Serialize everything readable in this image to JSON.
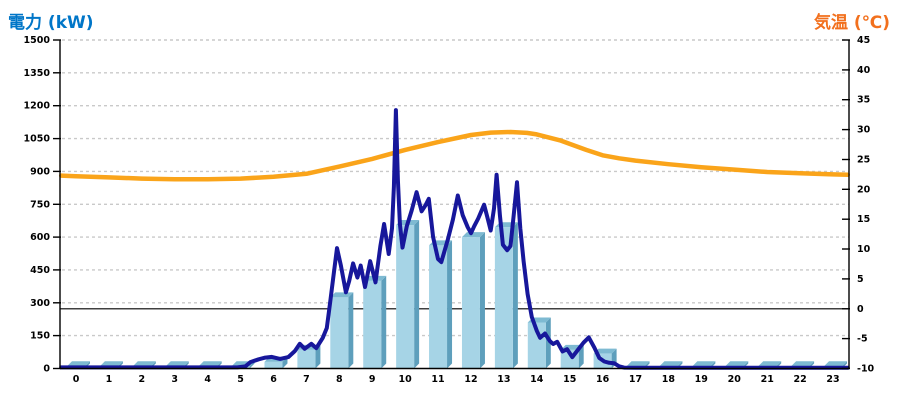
{
  "header": {
    "left_axis_title": "電力 (kW)",
    "right_axis_title": "気温 (℃)",
    "left_title_color": "#0076C8",
    "right_title_color": "#F2701D"
  },
  "chart_data": {
    "type": "combo-bar-line",
    "x_labels": [
      "0",
      "1",
      "2",
      "3",
      "4",
      "5",
      "6",
      "7",
      "8",
      "9",
      "10",
      "11",
      "12",
      "13",
      "14",
      "15",
      "16",
      "17",
      "18",
      "19",
      "20",
      "21",
      "22",
      "23"
    ],
    "left_axis": {
      "label": "電力 (kW)",
      "min": 0,
      "max": 1500,
      "step": 150,
      "tick_labels": [
        "1500",
        "1350",
        "1200",
        "1050",
        "900",
        "750",
        "600",
        "450",
        "300",
        "150",
        "0"
      ]
    },
    "right_axis": {
      "label": "気温 (℃)",
      "min": -10,
      "max": 45,
      "step": 5,
      "tick_labels": [
        "45",
        "40",
        "35",
        "30",
        "25",
        "20",
        "15",
        "10",
        "5",
        "0",
        "-5",
        "-10"
      ]
    },
    "grid": {
      "color": "#C9C9C9",
      "dash": "3,3"
    },
    "reference_line": {
      "axis": "right",
      "value": 0,
      "color": "#000000"
    },
    "series": [
      {
        "id": "power-bars",
        "type": "bar",
        "axis": "left",
        "color_front": "#A6D4E6",
        "color_side": "#5E9FBC",
        "color_top": "#7EBAD2",
        "values": [
          10,
          10,
          10,
          10,
          10,
          10,
          30,
          85,
          325,
          400,
          655,
          562,
          600,
          645,
          210,
          85,
          68,
          10,
          10,
          10,
          10,
          10,
          10,
          10
        ]
      },
      {
        "id": "temperature-line",
        "type": "line",
        "axis": "right",
        "color": "#FAA41A",
        "width": 4.5,
        "points": [
          [
            -0.45,
            22.3
          ],
          [
            0,
            22.2
          ],
          [
            1,
            22.0
          ],
          [
            2,
            21.8
          ],
          [
            3,
            21.7
          ],
          [
            4,
            21.7
          ],
          [
            5,
            21.8
          ],
          [
            6,
            22.1
          ],
          [
            7,
            22.6
          ],
          [
            8,
            23.8
          ],
          [
            9,
            25.1
          ],
          [
            10,
            26.6
          ],
          [
            11,
            27.9
          ],
          [
            12,
            29.1
          ],
          [
            12.6,
            29.5
          ],
          [
            13.2,
            29.6
          ],
          [
            13.7,
            29.45
          ],
          [
            14,
            29.2
          ],
          [
            14.7,
            28.2
          ],
          [
            15,
            27.6
          ],
          [
            15.5,
            26.6
          ],
          [
            16,
            25.7
          ],
          [
            16.5,
            25.2
          ],
          [
            17,
            24.8
          ],
          [
            18,
            24.2
          ],
          [
            19,
            23.7
          ],
          [
            20,
            23.3
          ],
          [
            21,
            22.9
          ],
          [
            22,
            22.7
          ],
          [
            23,
            22.5
          ],
          [
            23.45,
            22.45
          ]
        ]
      },
      {
        "id": "power-line",
        "type": "line",
        "axis": "left",
        "color": "#17179B",
        "width": 4,
        "points": [
          [
            -0.45,
            5
          ],
          [
            0,
            5
          ],
          [
            0.5,
            5
          ],
          [
            1,
            5
          ],
          [
            1.5,
            5
          ],
          [
            2,
            5
          ],
          [
            2.5,
            5
          ],
          [
            3,
            5
          ],
          [
            3.5,
            5
          ],
          [
            4,
            5
          ],
          [
            4.5,
            5
          ],
          [
            4.9,
            5
          ],
          [
            5.15,
            10
          ],
          [
            5.3,
            29
          ],
          [
            5.55,
            42
          ],
          [
            5.75,
            50
          ],
          [
            5.95,
            53
          ],
          [
            6.2,
            44
          ],
          [
            6.45,
            52
          ],
          [
            6.65,
            80
          ],
          [
            6.8,
            113
          ],
          [
            6.95,
            90
          ],
          [
            7.15,
            113
          ],
          [
            7.3,
            93
          ],
          [
            7.5,
            140
          ],
          [
            7.62,
            185
          ],
          [
            7.72,
            300
          ],
          [
            7.82,
            420
          ],
          [
            7.93,
            550
          ],
          [
            8.05,
            470
          ],
          [
            8.2,
            348
          ],
          [
            8.3,
            400
          ],
          [
            8.42,
            480
          ],
          [
            8.55,
            415
          ],
          [
            8.65,
            470
          ],
          [
            8.78,
            372
          ],
          [
            8.94,
            490
          ],
          [
            9.1,
            393
          ],
          [
            9.25,
            560
          ],
          [
            9.36,
            660
          ],
          [
            9.5,
            523
          ],
          [
            9.6,
            640
          ],
          [
            9.66,
            830
          ],
          [
            9.72,
            1180
          ],
          [
            9.78,
            860
          ],
          [
            9.84,
            660
          ],
          [
            9.92,
            552
          ],
          [
            10.05,
            650
          ],
          [
            10.2,
            722
          ],
          [
            10.35,
            805
          ],
          [
            10.5,
            718
          ],
          [
            10.62,
            745
          ],
          [
            10.72,
            775
          ],
          [
            10.85,
            600
          ],
          [
            11.0,
            500
          ],
          [
            11.1,
            486
          ],
          [
            11.3,
            590
          ],
          [
            11.45,
            680
          ],
          [
            11.6,
            790
          ],
          [
            11.75,
            700
          ],
          [
            11.9,
            645
          ],
          [
            12.0,
            618
          ],
          [
            12.1,
            650
          ],
          [
            12.22,
            685
          ],
          [
            12.4,
            748
          ],
          [
            12.5,
            690
          ],
          [
            12.6,
            630
          ],
          [
            12.7,
            730
          ],
          [
            12.78,
            885
          ],
          [
            12.88,
            700
          ],
          [
            12.97,
            565
          ],
          [
            13.1,
            540
          ],
          [
            13.2,
            560
          ],
          [
            13.3,
            700
          ],
          [
            13.4,
            850
          ],
          [
            13.5,
            640
          ],
          [
            13.6,
            490
          ],
          [
            13.72,
            340
          ],
          [
            13.85,
            235
          ],
          [
            14.0,
            172
          ],
          [
            14.1,
            140
          ],
          [
            14.25,
            160
          ],
          [
            14.4,
            125
          ],
          [
            14.5,
            112
          ],
          [
            14.62,
            122
          ],
          [
            14.78,
            78
          ],
          [
            14.92,
            88
          ],
          [
            15.08,
            52
          ],
          [
            15.25,
            85
          ],
          [
            15.42,
            118
          ],
          [
            15.58,
            142
          ],
          [
            15.75,
            95
          ],
          [
            15.9,
            48
          ],
          [
            16.05,
            32
          ],
          [
            16.2,
            26
          ],
          [
            16.35,
            24
          ],
          [
            16.5,
            10
          ],
          [
            16.65,
            4
          ],
          [
            17,
            3
          ],
          [
            17.5,
            3
          ],
          [
            18,
            3
          ],
          [
            18.5,
            3
          ],
          [
            19,
            3
          ],
          [
            19.5,
            3
          ],
          [
            20,
            3
          ],
          [
            20.5,
            3
          ],
          [
            21,
            3
          ],
          [
            21.5,
            3
          ],
          [
            22,
            3
          ],
          [
            22.5,
            3
          ],
          [
            23,
            3
          ],
          [
            23.45,
            3
          ]
        ]
      }
    ]
  }
}
